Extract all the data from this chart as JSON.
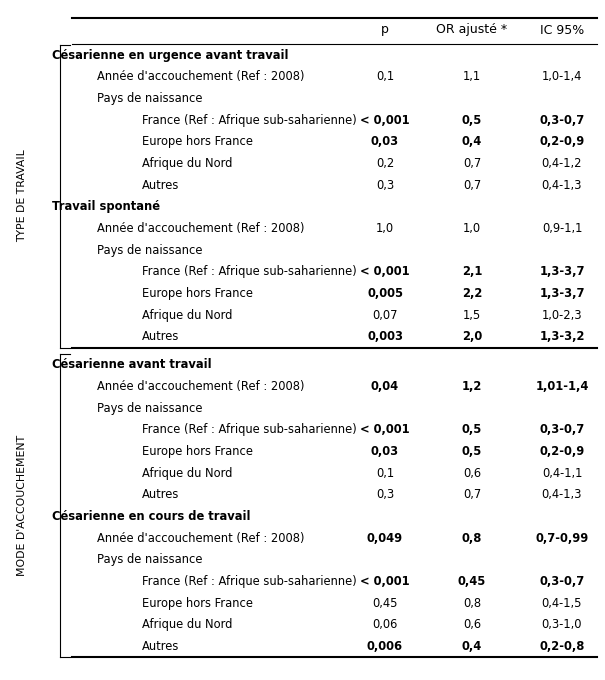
{
  "col_headers": [
    "p",
    "OR ajusté *",
    "IC 95%"
  ],
  "rows": [
    {
      "label": "Césarienne en urgence avant travail",
      "level": 0,
      "bold_label": true,
      "p": "",
      "or": "",
      "ic": "",
      "bold_vals": false
    },
    {
      "label": "Année d'accouchement (Ref : 2008)",
      "level": 1,
      "bold_label": false,
      "p": "0,1",
      "or": "1,1",
      "ic": "1,0-1,4",
      "bold_vals": false
    },
    {
      "label": "Pays de naissance",
      "level": 1,
      "bold_label": false,
      "p": "",
      "or": "",
      "ic": "",
      "bold_vals": false
    },
    {
      "label": "France (Ref : Afrique sub-saharienne)",
      "level": 2,
      "bold_label": false,
      "p": "< 0,001",
      "or": "0,5",
      "ic": "0,3-0,7",
      "bold_vals": true
    },
    {
      "label": "Europe hors France",
      "level": 2,
      "bold_label": false,
      "p": "0,03",
      "or": "0,4",
      "ic": "0,2-0,9",
      "bold_vals": true
    },
    {
      "label": "Afrique du Nord",
      "level": 2,
      "bold_label": false,
      "p": "0,2",
      "or": "0,7",
      "ic": "0,4-1,2",
      "bold_vals": false
    },
    {
      "label": "Autres",
      "level": 2,
      "bold_label": false,
      "p": "0,3",
      "or": "0,7",
      "ic": "0,4-1,3",
      "bold_vals": false
    },
    {
      "label": "Travail spontané",
      "level": 0,
      "bold_label": true,
      "p": "",
      "or": "",
      "ic": "",
      "bold_vals": false
    },
    {
      "label": "Année d'accouchement (Ref : 2008)",
      "level": 1,
      "bold_label": false,
      "p": "1,0",
      "or": "1,0",
      "ic": "0,9-1,1",
      "bold_vals": false
    },
    {
      "label": "Pays de naissance",
      "level": 1,
      "bold_label": false,
      "p": "",
      "or": "",
      "ic": "",
      "bold_vals": false
    },
    {
      "label": "France (Ref : Afrique sub-saharienne)",
      "level": 2,
      "bold_label": false,
      "p": "< 0,001",
      "or": "2,1",
      "ic": "1,3-3,7",
      "bold_vals": true
    },
    {
      "label": "Europe hors France",
      "level": 2,
      "bold_label": false,
      "p": "0,005",
      "or": "2,2",
      "ic": "1,3-3,7",
      "bold_vals": true
    },
    {
      "label": "Afrique du Nord",
      "level": 2,
      "bold_label": false,
      "p": "0,07",
      "or": "1,5",
      "ic": "1,0-2,3",
      "bold_vals": false
    },
    {
      "label": "Autres",
      "level": 2,
      "bold_label": false,
      "p": "0,003",
      "or": "2,0",
      "ic": "1,3-3,2",
      "bold_vals": true
    },
    {
      "label": "Césarienne avant travail",
      "level": 0,
      "bold_label": true,
      "p": "",
      "or": "",
      "ic": "",
      "bold_vals": false,
      "section_break": true
    },
    {
      "label": "Année d'accouchement (Ref : 2008)",
      "level": 1,
      "bold_label": false,
      "p": "0,04",
      "or": "1,2",
      "ic": "1,01-1,4",
      "bold_vals": true
    },
    {
      "label": "Pays de naissance",
      "level": 1,
      "bold_label": false,
      "p": "",
      "or": "",
      "ic": "",
      "bold_vals": false
    },
    {
      "label": "France (Ref : Afrique sub-saharienne)",
      "level": 2,
      "bold_label": false,
      "p": "< 0,001",
      "or": "0,5",
      "ic": "0,3-0,7",
      "bold_vals": true
    },
    {
      "label": "Europe hors France",
      "level": 2,
      "bold_label": false,
      "p": "0,03",
      "or": "0,5",
      "ic": "0,2-0,9",
      "bold_vals": true
    },
    {
      "label": "Afrique du Nord",
      "level": 2,
      "bold_label": false,
      "p": "0,1",
      "or": "0,6",
      "ic": "0,4-1,1",
      "bold_vals": false
    },
    {
      "label": "Autres",
      "level": 2,
      "bold_label": false,
      "p": "0,3",
      "or": "0,7",
      "ic": "0,4-1,3",
      "bold_vals": false
    },
    {
      "label": "Césarienne en cours de travail",
      "level": 0,
      "bold_label": true,
      "p": "",
      "or": "",
      "ic": "",
      "bold_vals": false
    },
    {
      "label": "Année d'accouchement (Ref : 2008)",
      "level": 1,
      "bold_label": false,
      "p": "0,049",
      "or": "0,8",
      "ic": "0,7-0,99",
      "bold_vals": true
    },
    {
      "label": "Pays de naissance",
      "level": 1,
      "bold_label": false,
      "p": "",
      "or": "",
      "ic": "",
      "bold_vals": false
    },
    {
      "label": "France (Ref : Afrique sub-saharienne)",
      "level": 2,
      "bold_label": false,
      "p": "< 0,001",
      "or": "0,45",
      "ic": "0,3-0,7",
      "bold_vals": true
    },
    {
      "label": "Europe hors France",
      "level": 2,
      "bold_label": false,
      "p": "0,45",
      "or": "0,8",
      "ic": "0,4-1,5",
      "bold_vals": false
    },
    {
      "label": "Afrique du Nord",
      "level": 2,
      "bold_label": false,
      "p": "0,06",
      "or": "0,6",
      "ic": "0,3-1,0",
      "bold_vals": false
    },
    {
      "label": "Autres",
      "level": 2,
      "bold_label": false,
      "p": "0,006",
      "or": "0,4",
      "ic": "0,2-0,8",
      "bold_vals": true
    }
  ],
  "section1_rows": [
    0,
    13
  ],
  "section2_rows": [
    14,
    27
  ],
  "bg_color": "#ffffff",
  "text_color": "#000000"
}
